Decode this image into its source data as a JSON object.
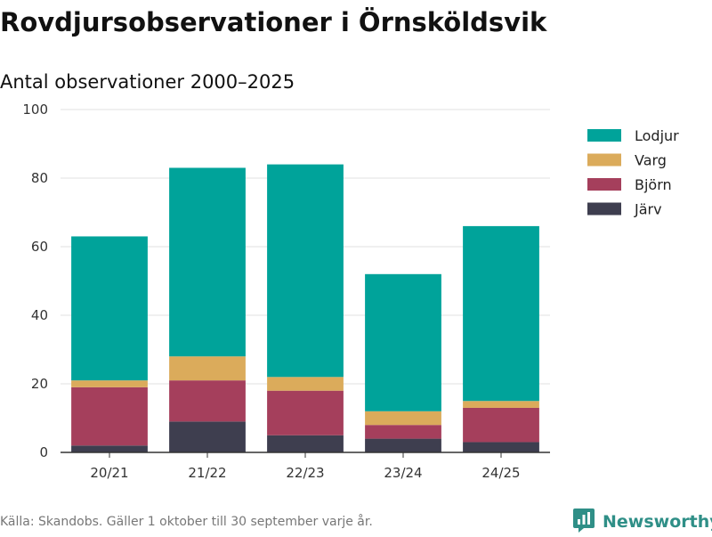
{
  "chart_data": {
    "type": "bar",
    "stacked": true,
    "title": "Rovdjursobservationer i Örnsköldsvik",
    "subtitle": "Antal observationer 2000–2025",
    "categories": [
      "20/21",
      "21/22",
      "22/23",
      "23/24",
      "24/25"
    ],
    "series": [
      {
        "name": "Järv",
        "color": "#3e3e4f",
        "values": [
          2,
          9,
          5,
          4,
          3
        ]
      },
      {
        "name": "Björn",
        "color": "#a53f5c",
        "values": [
          17,
          12,
          13,
          4,
          10
        ]
      },
      {
        "name": "Varg",
        "color": "#dbab5b",
        "values": [
          2,
          7,
          4,
          4,
          2
        ]
      },
      {
        "name": "Lodjur",
        "color": "#00a39a",
        "values": [
          42,
          55,
          62,
          40,
          51
        ]
      }
    ],
    "legend_order": [
      "Lodjur",
      "Varg",
      "Björn",
      "Järv"
    ],
    "legend_position": "right",
    "ylim": [
      0,
      100
    ],
    "yticks": [
      "0",
      "20",
      "40",
      "60",
      "80",
      "100"
    ],
    "grid": true,
    "xlabel": "",
    "ylabel": ""
  },
  "footer": {
    "source": "Källa: Skandobs. Gäller 1 oktober till 30 september varje år.",
    "brand": "Newsworthy",
    "brand_color": "#2f8f87"
  }
}
